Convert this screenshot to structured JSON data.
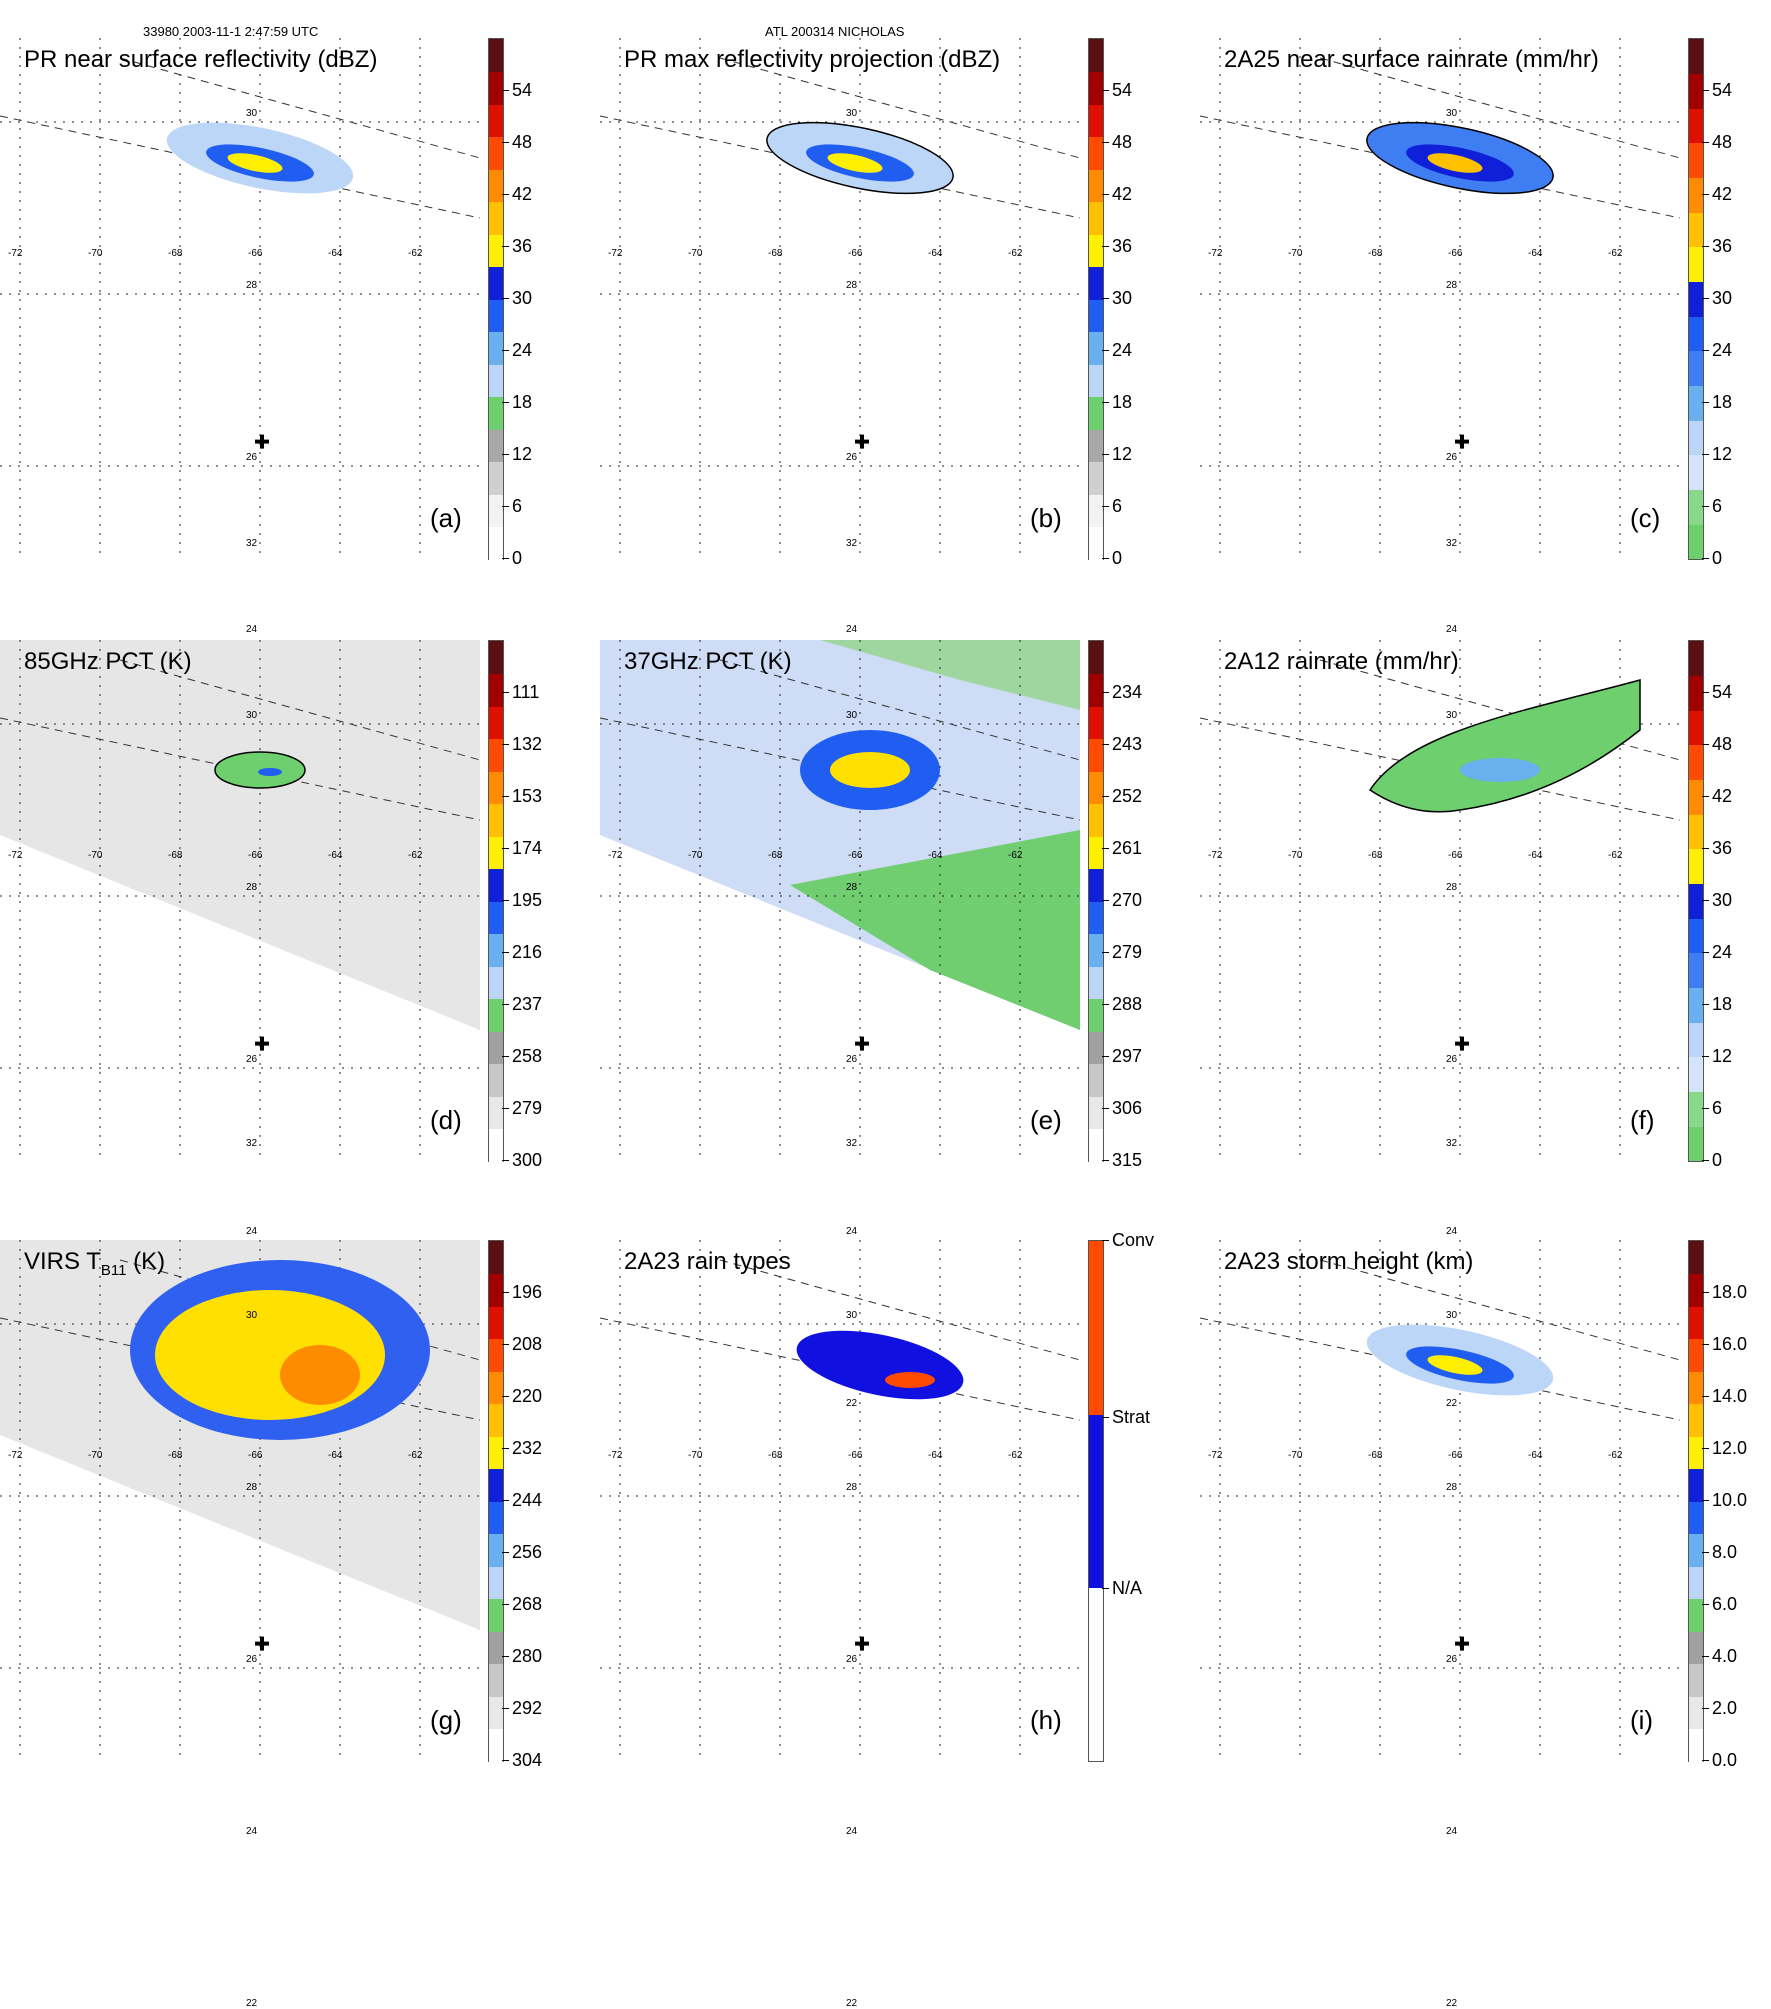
{
  "header": {
    "orbit_time": "33980 2003-11-1 2:47:59 UTC",
    "storm": "ATL 200314 NICHOLAS"
  },
  "map_axes": {
    "lon_ticks": [
      "-72",
      "-70",
      "-68",
      "-66",
      "-64",
      "-62"
    ],
    "lat_ticks": [
      "32",
      "30",
      "28",
      "26",
      "24",
      "22"
    ],
    "storm_center": {
      "lon": -66.0,
      "lat": 26.4
    }
  },
  "chart_data": [
    {
      "panel": "(a)",
      "type": "heatmap",
      "title": "PR near surface reflectivity (dBZ)",
      "colorbar": {
        "ticks": [
          "0",
          "6",
          "12",
          "18",
          "24",
          "30",
          "36",
          "42",
          "48",
          "54"
        ],
        "colors": [
          "#ffffff",
          "#f2f2f2",
          "#d0d0d0",
          "#a8a8a8",
          "#6ecf6e",
          "#bcd6f7",
          "#6ab0ef",
          "#1f5ef0",
          "#1020d8",
          "#ffef00",
          "#ffc000",
          "#ff8c00",
          "#ff4a00",
          "#e01000",
          "#a00000",
          "#5a1010"
        ]
      },
      "features": {
        "swath": true,
        "contours": false
      }
    },
    {
      "panel": "(b)",
      "type": "heatmap",
      "title": "PR max reflectivity projection (dBZ)",
      "colorbar": {
        "ticks": [
          "0",
          "6",
          "12",
          "18",
          "24",
          "30",
          "36",
          "42",
          "48",
          "54"
        ],
        "colors": [
          "#ffffff",
          "#f2f2f2",
          "#d0d0d0",
          "#a8a8a8",
          "#6ecf6e",
          "#bcd6f7",
          "#6ab0ef",
          "#1f5ef0",
          "#1020d8",
          "#ffef00",
          "#ffc000",
          "#ff8c00",
          "#ff4a00",
          "#e01000",
          "#a00000",
          "#5a1010"
        ]
      },
      "features": {
        "swath": true,
        "contours": true
      }
    },
    {
      "panel": "(c)",
      "type": "heatmap",
      "title": "2A25 near surface rainrate (mm/hr)",
      "colorbar": {
        "ticks": [
          "0",
          "6",
          "12",
          "18",
          "24",
          "30",
          "36",
          "42",
          "48",
          "54"
        ],
        "colors": [
          "#6ecf6e",
          "#8ad98a",
          "#d6e4fb",
          "#bcd6f7",
          "#6ab0ef",
          "#3f7ef2",
          "#1f5ef0",
          "#1020d8",
          "#ffef00",
          "#ffc000",
          "#ff8c00",
          "#ff4a00",
          "#e01000",
          "#a00000",
          "#5a1010"
        ]
      },
      "features": {
        "swath": true,
        "contours": true
      }
    },
    {
      "panel": "(d)",
      "type": "heatmap",
      "title": "85GHz PCT (K)",
      "colorbar": {
        "ticks": [
          "300",
          "279",
          "258",
          "237",
          "216",
          "195",
          "174",
          "153",
          "132",
          "111"
        ],
        "colors": [
          "#ffffff",
          "#e8e8e8",
          "#c8c8c8",
          "#a0a0a0",
          "#6ecf6e",
          "#bcd6f7",
          "#6ab0ef",
          "#1f5ef0",
          "#1020d8",
          "#ffef00",
          "#ffc000",
          "#ff8c00",
          "#ff4a00",
          "#e01000",
          "#a00000",
          "#5a1010"
        ]
      },
      "features": {
        "swath": true,
        "contours": true
      }
    },
    {
      "panel": "(e)",
      "type": "heatmap",
      "title": "37GHz PCT (K)",
      "colorbar": {
        "ticks": [
          "315",
          "306",
          "297",
          "288",
          "279",
          "270",
          "261",
          "252",
          "243",
          "234"
        ],
        "colors": [
          "#ffffff",
          "#e8e8e8",
          "#c8c8c8",
          "#a0a0a0",
          "#6ecf6e",
          "#bcd6f7",
          "#6ab0ef",
          "#1f5ef0",
          "#1020d8",
          "#ffef00",
          "#ffc000",
          "#ff8c00",
          "#ff4a00",
          "#e01000",
          "#a00000",
          "#5a1010"
        ]
      },
      "features": {
        "swath": true,
        "contours": false
      }
    },
    {
      "panel": "(f)",
      "type": "heatmap",
      "title": "2A12 rainrate (mm/hr)",
      "colorbar": {
        "ticks": [
          "0",
          "6",
          "12",
          "18",
          "24",
          "30",
          "36",
          "42",
          "48",
          "54"
        ],
        "colors": [
          "#6ecf6e",
          "#8ad98a",
          "#d6e4fb",
          "#bcd6f7",
          "#6ab0ef",
          "#3f7ef2",
          "#1f5ef0",
          "#1020d8",
          "#ffef00",
          "#ffc000",
          "#ff8c00",
          "#ff4a00",
          "#e01000",
          "#a00000",
          "#5a1010"
        ]
      },
      "features": {
        "swath": true,
        "contours": true
      }
    },
    {
      "panel": "(g)",
      "type": "heatmap",
      "title_main": "VIRS T",
      "title_sub": "B11",
      "title_unit": " (K)",
      "colorbar": {
        "ticks": [
          "304",
          "292",
          "280",
          "268",
          "256",
          "244",
          "232",
          "220",
          "208",
          "196"
        ],
        "colors": [
          "#ffffff",
          "#e8e8e8",
          "#c8c8c8",
          "#a0a0a0",
          "#6ecf6e",
          "#bcd6f7",
          "#6ab0ef",
          "#1f5ef0",
          "#1020d8",
          "#ffef00",
          "#ffc000",
          "#ff8c00",
          "#ff4a00",
          "#e01000",
          "#a00000",
          "#5a1010"
        ]
      },
      "features": {
        "swath": true,
        "contours": true
      }
    },
    {
      "panel": "(h)",
      "type": "heatmap",
      "title": "2A23 rain types",
      "colorbar": {
        "ticks": [
          "N/A",
          "Strat",
          "Conv"
        ],
        "colors": [
          "#ffffff",
          "#1010e0",
          "#ff4a00"
        ]
      },
      "features": {
        "swath": true,
        "contours": false
      }
    },
    {
      "panel": "(i)",
      "type": "heatmap",
      "title": "2A23 storm height (km)",
      "colorbar": {
        "ticks": [
          "0.0",
          "2.0",
          "4.0",
          "6.0",
          "8.0",
          "10.0",
          "12.0",
          "14.0",
          "16.0",
          "18.0"
        ],
        "colors": [
          "#ffffff",
          "#e8e8e8",
          "#c8c8c8",
          "#a0a0a0",
          "#6ecf6e",
          "#bcd6f7",
          "#6ab0ef",
          "#1f5ef0",
          "#1020d8",
          "#ffef00",
          "#ffc000",
          "#ff8c00",
          "#ff4a00",
          "#e01000",
          "#a00000",
          "#5a1010"
        ]
      },
      "features": {
        "swath": true,
        "contours": false
      }
    }
  ]
}
